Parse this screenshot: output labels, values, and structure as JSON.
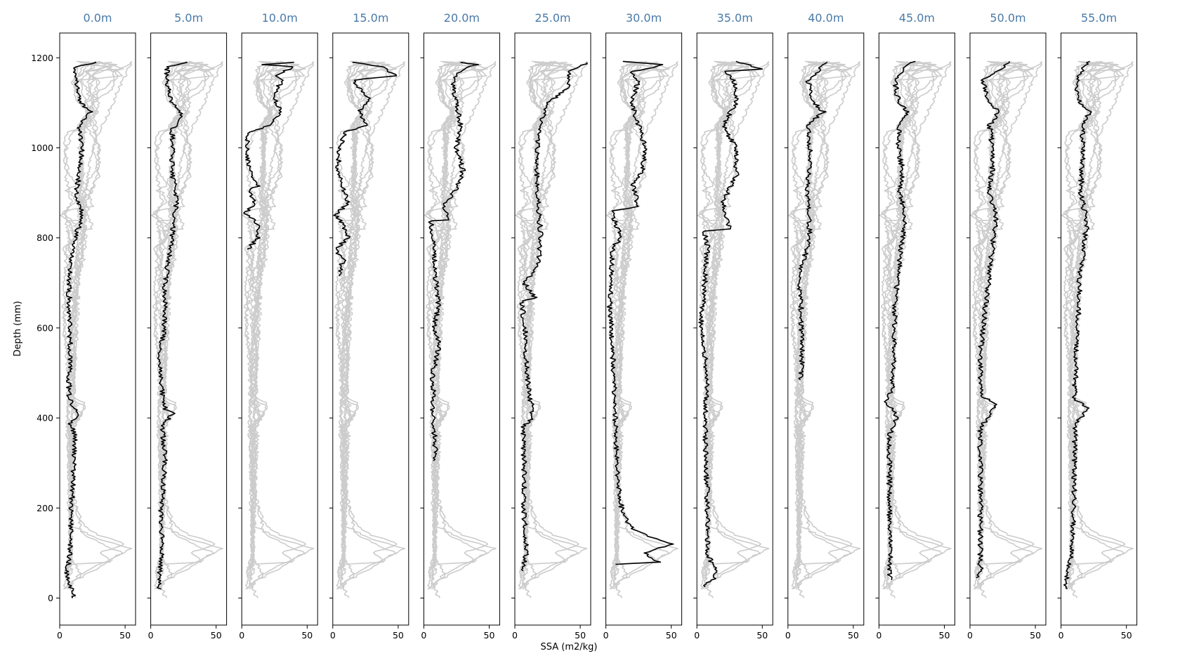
{
  "chart_data": {
    "type": "line",
    "title": "",
    "xlabel": "SSA (m2/kg)",
    "ylabel": "Depth (mm)",
    "xlim": [
      0,
      58
    ],
    "ylim": [
      -60,
      1255
    ],
    "x_ticks": [
      0,
      50
    ],
    "y_ticks": [
      0,
      200,
      400,
      600,
      800,
      1000,
      1200
    ],
    "grid": false,
    "colors": {
      "highlight": "#000000",
      "background": "#cccccc",
      "title": "#4a7aa8"
    },
    "panels": [
      {
        "title": "0.0m",
        "highlight": [
          [
            11,
            0
          ],
          [
            8,
            30
          ],
          [
            5,
            50
          ],
          [
            8,
            100
          ],
          [
            9,
            200
          ],
          [
            11,
            300
          ],
          [
            12,
            360
          ],
          [
            8,
            390
          ],
          [
            14,
            400
          ],
          [
            10,
            430
          ],
          [
            7,
            450
          ],
          [
            8,
            560
          ],
          [
            7,
            700
          ],
          [
            8,
            750
          ],
          [
            12,
            800
          ],
          [
            17,
            850
          ],
          [
            13,
            900
          ],
          [
            15,
            950
          ],
          [
            17,
            1000
          ],
          [
            15,
            1050
          ],
          [
            24,
            1080
          ],
          [
            16,
            1100
          ],
          [
            12,
            1150
          ],
          [
            12,
            1180
          ],
          [
            28,
            1190
          ]
        ]
      },
      {
        "title": "5.0m",
        "highlight": [
          [
            7,
            20
          ],
          [
            7,
            60
          ],
          [
            9,
            100
          ],
          [
            8,
            200
          ],
          [
            11,
            300
          ],
          [
            9,
            380
          ],
          [
            17,
            410
          ],
          [
            11,
            420
          ],
          [
            9,
            450
          ],
          [
            7,
            550
          ],
          [
            10,
            590
          ],
          [
            11,
            700
          ],
          [
            16,
            800
          ],
          [
            20,
            880
          ],
          [
            16,
            950
          ],
          [
            17,
            1000
          ],
          [
            16,
            1040
          ],
          [
            24,
            1070
          ],
          [
            16,
            1100
          ],
          [
            12,
            1150
          ],
          [
            13,
            1180
          ],
          [
            28,
            1190
          ]
        ]
      },
      {
        "title": "10.0m",
        "highlight": [
          [
            5,
            775
          ],
          [
            12,
            800
          ],
          [
            12,
            830
          ],
          [
            3,
            855
          ],
          [
            10,
            880
          ],
          [
            5,
            905
          ],
          [
            12,
            915
          ],
          [
            6,
            950
          ],
          [
            4,
            1000
          ],
          [
            5,
            1035
          ],
          [
            12,
            1040
          ],
          [
            20,
            1050
          ],
          [
            30,
            1080
          ],
          [
            25,
            1110
          ],
          [
            30,
            1150
          ],
          [
            25,
            1160
          ],
          [
            40,
            1180
          ],
          [
            15,
            1185
          ],
          [
            40,
            1190
          ]
        ]
      },
      {
        "title": "15.0m",
        "highlight": [
          [
            4,
            715
          ],
          [
            8,
            750
          ],
          [
            2,
            775
          ],
          [
            12,
            800
          ],
          [
            8,
            830
          ],
          [
            2,
            850
          ],
          [
            12,
            880
          ],
          [
            6,
            920
          ],
          [
            4,
            950
          ],
          [
            5,
            1000
          ],
          [
            10,
            1035
          ],
          [
            25,
            1050
          ],
          [
            20,
            1080
          ],
          [
            28,
            1110
          ],
          [
            15,
            1150
          ],
          [
            48,
            1160
          ],
          [
            38,
            1180
          ],
          [
            15,
            1190
          ]
        ]
      },
      {
        "title": "20.0m",
        "highlight": [
          [
            8,
            305
          ],
          [
            9,
            330
          ],
          [
            7,
            400
          ],
          [
            7,
            500
          ],
          [
            12,
            560
          ],
          [
            8,
            600
          ],
          [
            11,
            650
          ],
          [
            9,
            720
          ],
          [
            7,
            800
          ],
          [
            5,
            838
          ],
          [
            20,
            840
          ],
          [
            15,
            870
          ],
          [
            25,
            910
          ],
          [
            30,
            950
          ],
          [
            25,
            1000
          ],
          [
            28,
            1050
          ],
          [
            25,
            1100
          ],
          [
            22,
            1150
          ],
          [
            30,
            1175
          ],
          [
            40,
            1185
          ],
          [
            28,
            1190
          ]
        ]
      },
      {
        "title": "25.0m",
        "highlight": [
          [
            5,
            60
          ],
          [
            9,
            100
          ],
          [
            7,
            200
          ],
          [
            7,
            300
          ],
          [
            6,
            380
          ],
          [
            14,
            400
          ],
          [
            9,
            500
          ],
          [
            8,
            600
          ],
          [
            5,
            660
          ],
          [
            16,
            665
          ],
          [
            7,
            700
          ],
          [
            18,
            740
          ],
          [
            20,
            800
          ],
          [
            17,
            900
          ],
          [
            17,
            1000
          ],
          [
            20,
            1050
          ],
          [
            25,
            1100
          ],
          [
            40,
            1130
          ],
          [
            42,
            1170
          ],
          [
            50,
            1180
          ],
          [
            55,
            1190
          ]
        ]
      },
      {
        "title": "30.0m",
        "highlight": [
          [
            8,
            75
          ],
          [
            40,
            80
          ],
          [
            30,
            100
          ],
          [
            50,
            120
          ],
          [
            30,
            140
          ],
          [
            18,
            160
          ],
          [
            12,
            200
          ],
          [
            8,
            300
          ],
          [
            6,
            500
          ],
          [
            3,
            650
          ],
          [
            5,
            780
          ],
          [
            12,
            800
          ],
          [
            4,
            860
          ],
          [
            25,
            870
          ],
          [
            20,
            920
          ],
          [
            28,
            950
          ],
          [
            30,
            1000
          ],
          [
            25,
            1050
          ],
          [
            20,
            1100
          ],
          [
            25,
            1150
          ],
          [
            20,
            1170
          ],
          [
            30,
            1175
          ],
          [
            45,
            1185
          ],
          [
            13,
            1192
          ]
        ]
      },
      {
        "title": "35.0m",
        "highlight": [
          [
            5,
            25
          ],
          [
            12,
            40
          ],
          [
            15,
            55
          ],
          [
            8,
            100
          ],
          [
            8,
            200
          ],
          [
            7,
            300
          ],
          [
            6,
            400
          ],
          [
            8,
            480
          ],
          [
            6,
            550
          ],
          [
            3,
            600
          ],
          [
            6,
            700
          ],
          [
            8,
            780
          ],
          [
            6,
            815
          ],
          [
            25,
            820
          ],
          [
            20,
            880
          ],
          [
            30,
            940
          ],
          [
            30,
            1000
          ],
          [
            20,
            1050
          ],
          [
            30,
            1100
          ],
          [
            28,
            1150
          ],
          [
            20,
            1170
          ],
          [
            50,
            1175
          ],
          [
            30,
            1192
          ]
        ]
      },
      {
        "title": "40.0m",
        "highlight": [
          [
            10,
            485
          ],
          [
            11,
            550
          ],
          [
            10,
            650
          ],
          [
            8,
            720
          ],
          [
            12,
            750
          ],
          [
            17,
            800
          ],
          [
            15,
            900
          ],
          [
            17,
            1000
          ],
          [
            15,
            1050
          ],
          [
            27,
            1080
          ],
          [
            20,
            1100
          ],
          [
            15,
            1150
          ],
          [
            30,
            1190
          ]
        ]
      },
      {
        "title": "45.0m",
        "highlight": [
          [
            8,
            40
          ],
          [
            9,
            100
          ],
          [
            8,
            200
          ],
          [
            8,
            300
          ],
          [
            8,
            360
          ],
          [
            14,
            400
          ],
          [
            12,
            415
          ],
          [
            5,
            430
          ],
          [
            10,
            460
          ],
          [
            12,
            550
          ],
          [
            12,
            650
          ],
          [
            16,
            750
          ],
          [
            18,
            800
          ],
          [
            20,
            850
          ],
          [
            16,
            900
          ],
          [
            18,
            950
          ],
          [
            15,
            1000
          ],
          [
            16,
            1050
          ],
          [
            22,
            1080
          ],
          [
            15,
            1100
          ],
          [
            12,
            1150
          ],
          [
            20,
            1180
          ],
          [
            28,
            1192
          ]
        ]
      },
      {
        "title": "50.0m",
        "highlight": [
          [
            5,
            45
          ],
          [
            8,
            60
          ],
          [
            8,
            100
          ],
          [
            8,
            200
          ],
          [
            8,
            300
          ],
          [
            8,
            380
          ],
          [
            14,
            400
          ],
          [
            20,
            430
          ],
          [
            8,
            450
          ],
          [
            8,
            550
          ],
          [
            10,
            600
          ],
          [
            14,
            700
          ],
          [
            18,
            800
          ],
          [
            20,
            850
          ],
          [
            15,
            900
          ],
          [
            17,
            950
          ],
          [
            17,
            1000
          ],
          [
            15,
            1050
          ],
          [
            22,
            1080
          ],
          [
            15,
            1100
          ],
          [
            10,
            1150
          ],
          [
            25,
            1180
          ],
          [
            30,
            1192
          ]
        ]
      },
      {
        "title": "55.0m",
        "highlight": [
          [
            3,
            20
          ],
          [
            5,
            60
          ],
          [
            8,
            100
          ],
          [
            10,
            200
          ],
          [
            10,
            300
          ],
          [
            11,
            380
          ],
          [
            20,
            425
          ],
          [
            10,
            440
          ],
          [
            12,
            550
          ],
          [
            14,
            650
          ],
          [
            14,
            700
          ],
          [
            18,
            800
          ],
          [
            20,
            830
          ],
          [
            15,
            900
          ],
          [
            17,
            1000
          ],
          [
            16,
            1050
          ],
          [
            22,
            1080
          ],
          [
            12,
            1110
          ],
          [
            12,
            1150
          ],
          [
            18,
            1180
          ],
          [
            22,
            1192
          ]
        ]
      }
    ]
  }
}
